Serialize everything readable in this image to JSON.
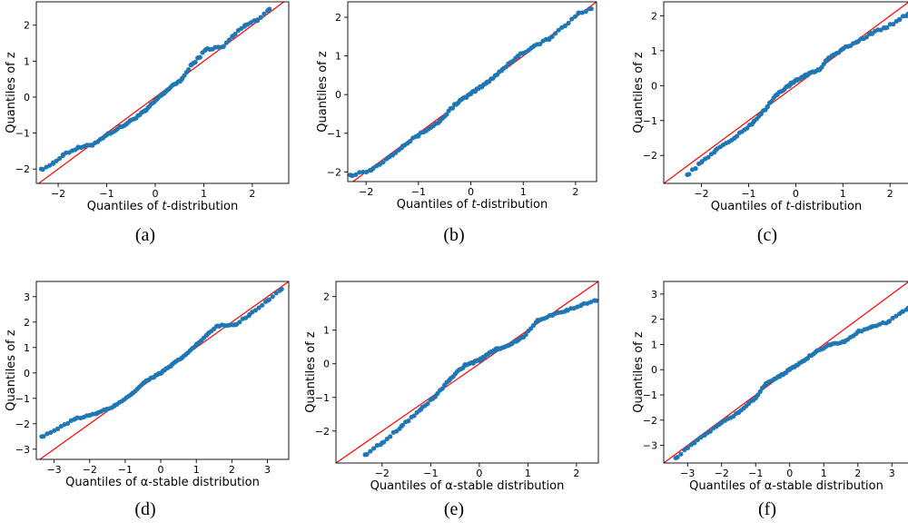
{
  "colors": {
    "point": "#1f77b4",
    "reference_line": "#ff0000",
    "axes": "#000000"
  },
  "chart_data": [
    {
      "type": "scatter",
      "caption": "(a)",
      "xlabel_prefix": "Quantiles of ",
      "xlabel_em": "t",
      "xlabel_suffix": "-distribution",
      "ylabel": "Quantiles of z",
      "xlim": [
        -2.45,
        2.75
      ],
      "ylim": [
        -2.4,
        2.65
      ],
      "xticks": [
        -2,
        -1,
        0,
        1,
        2
      ],
      "yticks": [
        -2,
        -1,
        0,
        1,
        2
      ],
      "reference_line": [
        [
          -2.45,
          -2.45
        ],
        [
          2.75,
          2.75
        ]
      ],
      "knots": [
        [
          -2.35,
          -2.0
        ],
        [
          -2.1,
          -1.85
        ],
        [
          -1.9,
          -1.6
        ],
        [
          -1.6,
          -1.42
        ],
        [
          -1.3,
          -1.33
        ],
        [
          -1.0,
          -1.05
        ],
        [
          -0.6,
          -0.75
        ],
        [
          -0.2,
          -0.38
        ],
        [
          0.0,
          -0.1
        ],
        [
          0.25,
          0.2
        ],
        [
          0.55,
          0.5
        ],
        [
          0.75,
          0.9
        ],
        [
          0.9,
          1.1
        ],
        [
          1.05,
          1.33
        ],
        [
          1.4,
          1.4
        ],
        [
          1.6,
          1.7
        ],
        [
          1.85,
          2.0
        ],
        [
          2.1,
          2.15
        ],
        [
          2.35,
          2.45
        ]
      ]
    },
    {
      "type": "scatter",
      "caption": "(b)",
      "xlabel_prefix": "Quantiles of ",
      "xlabel_em": "t",
      "xlabel_suffix": "-distribution",
      "ylabel": "Quantiles of z",
      "xlim": [
        -2.35,
        2.4
      ],
      "ylim": [
        -2.25,
        2.4
      ],
      "xticks": [
        -2,
        -1,
        0,
        1,
        2
      ],
      "yticks": [
        -2,
        -1,
        0,
        1,
        2
      ],
      "reference_line": [
        [
          -2.35,
          -2.35
        ],
        [
          2.4,
          2.4
        ]
      ],
      "knots": [
        [
          -2.3,
          -2.08
        ],
        [
          -1.9,
          -1.95
        ],
        [
          -1.6,
          -1.65
        ],
        [
          -1.3,
          -1.33
        ],
        [
          -1.0,
          -1.05
        ],
        [
          -0.6,
          -0.7
        ],
        [
          -0.3,
          -0.25
        ],
        [
          0.0,
          0.02
        ],
        [
          0.3,
          0.3
        ],
        [
          0.6,
          0.65
        ],
        [
          0.9,
          1.0
        ],
        [
          1.2,
          1.25
        ],
        [
          1.5,
          1.45
        ],
        [
          1.8,
          1.78
        ],
        [
          2.05,
          2.1
        ],
        [
          2.3,
          2.22
        ]
      ]
    },
    {
      "type": "scatter",
      "caption": "(c)",
      "xlabel_prefix": "Quantiles of ",
      "xlabel_em": "t",
      "xlabel_suffix": "-distribution",
      "ylabel": "Quantiles of z",
      "xlim": [
        -2.8,
        2.4
      ],
      "ylim": [
        -2.8,
        2.4
      ],
      "xticks": [
        -2,
        -1,
        0,
        1,
        2
      ],
      "yticks": [
        -2,
        -1,
        0,
        1,
        2
      ],
      "reference_line": [
        [
          -2.8,
          -2.8
        ],
        [
          2.4,
          2.4
        ]
      ],
      "knots": [
        [
          -2.3,
          -2.55
        ],
        [
          -2.0,
          -2.2
        ],
        [
          -1.7,
          -1.85
        ],
        [
          -1.3,
          -1.5
        ],
        [
          -0.9,
          -1.05
        ],
        [
          -0.6,
          -0.6
        ],
        [
          -0.4,
          -0.25
        ],
        [
          -0.1,
          0.05
        ],
        [
          0.2,
          0.3
        ],
        [
          0.5,
          0.45
        ],
        [
          0.7,
          0.8
        ],
        [
          1.0,
          1.05
        ],
        [
          1.3,
          1.25
        ],
        [
          1.6,
          1.5
        ],
        [
          1.9,
          1.65
        ],
        [
          2.2,
          1.9
        ],
        [
          2.38,
          2.05
        ]
      ]
    },
    {
      "type": "scatter",
      "caption": "(d)",
      "xlabel_prefix": "Quantiles of α-stable distribution",
      "xlabel_em": "",
      "xlabel_suffix": "",
      "ylabel": "Quantiles of z",
      "xlim": [
        -3.5,
        3.6
      ],
      "ylim": [
        -3.4,
        3.6
      ],
      "xticks": [
        -3,
        -2,
        -1,
        0,
        1,
        2,
        3
      ],
      "yticks": [
        -3,
        -2,
        -1,
        0,
        1,
        2,
        3
      ],
      "reference_line": [
        [
          -3.5,
          -3.5
        ],
        [
          3.6,
          3.6
        ]
      ],
      "knots": [
        [
          -3.35,
          -2.5
        ],
        [
          -2.9,
          -2.2
        ],
        [
          -2.4,
          -1.8
        ],
        [
          -1.8,
          -1.6
        ],
        [
          -1.3,
          -1.3
        ],
        [
          -0.8,
          -0.8
        ],
        [
          -0.4,
          -0.3
        ],
        [
          0.0,
          0.0
        ],
        [
          0.3,
          0.3
        ],
        [
          0.6,
          0.6
        ],
        [
          1.0,
          1.1
        ],
        [
          1.3,
          1.5
        ],
        [
          1.6,
          1.85
        ],
        [
          2.1,
          1.9
        ],
        [
          2.5,
          2.3
        ],
        [
          3.0,
          2.85
        ],
        [
          3.4,
          3.3
        ]
      ]
    },
    {
      "type": "scatter",
      "caption": "(e)",
      "xlabel_prefix": "Quantiles of α-stable distribution",
      "xlabel_em": "",
      "xlabel_suffix": "",
      "ylabel": "Quantiles of z",
      "xlim": [
        -2.95,
        2.45
      ],
      "ylim": [
        -2.95,
        2.45
      ],
      "xticks": [
        -2,
        -1,
        0,
        1,
        2
      ],
      "yticks": [
        -2,
        -1,
        0,
        1,
        2
      ],
      "reference_line": [
        [
          -2.95,
          -2.95
        ],
        [
          2.45,
          2.45
        ]
      ],
      "knots": [
        [
          -2.35,
          -2.7
        ],
        [
          -2.0,
          -2.35
        ],
        [
          -1.6,
          -1.85
        ],
        [
          -1.2,
          -1.35
        ],
        [
          -0.9,
          -0.95
        ],
        [
          -0.6,
          -0.45
        ],
        [
          -0.3,
          -0.05
        ],
        [
          0.0,
          0.1
        ],
        [
          0.3,
          0.4
        ],
        [
          0.6,
          0.55
        ],
        [
          0.9,
          0.8
        ],
        [
          1.2,
          1.3
        ],
        [
          1.5,
          1.45
        ],
        [
          1.8,
          1.6
        ],
        [
          2.1,
          1.75
        ],
        [
          2.4,
          1.88
        ]
      ]
    },
    {
      "type": "scatter",
      "caption": "(f)",
      "xlabel_prefix": "Quantiles of α-stable distribution",
      "xlabel_em": "",
      "xlabel_suffix": "",
      "ylabel": "Quantiles of z",
      "xlim": [
        -3.7,
        3.5
      ],
      "ylim": [
        -3.7,
        3.5
      ],
      "xticks": [
        -3,
        -2,
        -1,
        0,
        1,
        2,
        3
      ],
      "yticks": [
        -3,
        -2,
        -1,
        0,
        1,
        2,
        3
      ],
      "reference_line": [
        [
          -3.7,
          -3.7
        ],
        [
          3.5,
          3.5
        ]
      ],
      "knots": [
        [
          -3.35,
          -3.5
        ],
        [
          -3.0,
          -3.1
        ],
        [
          -2.5,
          -2.6
        ],
        [
          -2.0,
          -2.1
        ],
        [
          -1.5,
          -1.7
        ],
        [
          -1.0,
          -1.1
        ],
        [
          -0.7,
          -0.55
        ],
        [
          -0.3,
          -0.25
        ],
        [
          0.0,
          0.0
        ],
        [
          0.4,
          0.35
        ],
        [
          0.8,
          0.75
        ],
        [
          1.2,
          1.0
        ],
        [
          1.6,
          1.1
        ],
        [
          2.0,
          1.5
        ],
        [
          2.4,
          1.7
        ],
        [
          2.9,
          1.9
        ],
        [
          3.3,
          2.3
        ],
        [
          3.48,
          2.45
        ]
      ]
    }
  ]
}
